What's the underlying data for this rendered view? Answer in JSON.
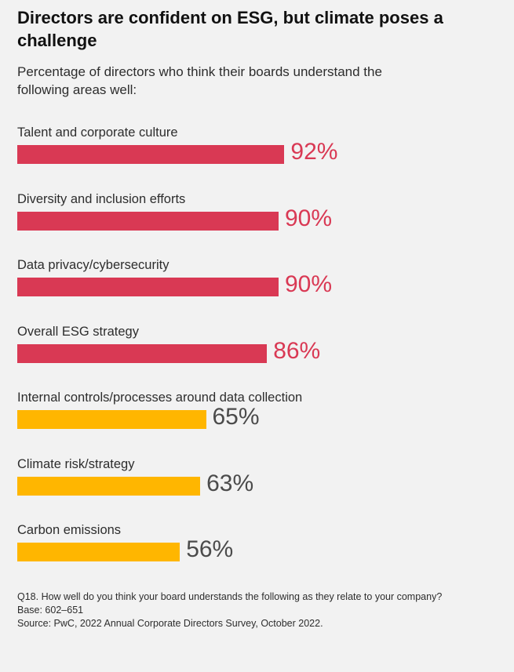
{
  "chart_data": {
    "type": "bar",
    "orientation": "horizontal",
    "title": "Directors are confident on ESG, but climate poses a challenge",
    "subtitle": "Percentage of directors who think their boards understand the following areas well:",
    "categories": [
      "Talent and corporate culture",
      "Diversity and inclusion efforts",
      "Data privacy/cybersecurity",
      "Overall ESG strategy",
      "Internal controls/processes around data collection",
      "Climate risk/strategy",
      "Carbon emissions"
    ],
    "values": [
      92,
      90,
      90,
      86,
      65,
      63,
      56
    ],
    "data_labels": [
      "92%",
      "90%",
      "90%",
      "86%",
      "65%",
      "63%",
      "56%"
    ],
    "colors": [
      "#d93954",
      "#d93954",
      "#d93954",
      "#d93954",
      "#ffb600",
      "#ffb600",
      "#ffb600"
    ],
    "label_colors": [
      "#d93954",
      "#d93954",
      "#d93954",
      "#d93954",
      "#4b4b4b",
      "#4b4b4b",
      "#4b4b4b"
    ],
    "xlim": [
      0,
      100
    ],
    "grid": false
  },
  "notes": [
    "Q18. How well do you think your board understands the following as they relate to your company?",
    "Base: 602–651",
    "Source: PwC, 2022 Annual Corporate Directors Survey, October 2022."
  ]
}
